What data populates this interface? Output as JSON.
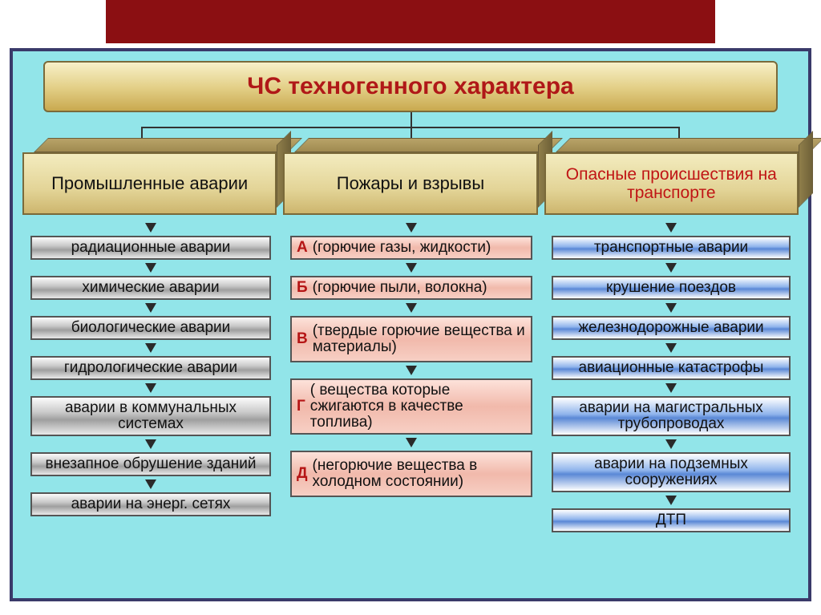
{
  "title": "ЧС техногенного характера",
  "categories": [
    {
      "label": "Промышленные аварии",
      "color": "black"
    },
    {
      "label": "Пожары и взрывы",
      "color": "black"
    },
    {
      "label": "Опасные происшествия на транспорте",
      "color": "red"
    }
  ],
  "column_left": {
    "style": "silver",
    "items": [
      "радиационные аварии",
      "химические аварии",
      "биологические аварии",
      "гидрологические аварии",
      "аварии в коммунальных системах",
      "внезапное обрушение зданий",
      "аварии на энерг. сетях"
    ]
  },
  "column_mid": {
    "style": "salmon",
    "items": [
      {
        "letter": "А",
        "text": "(горючие газы, жидкости)"
      },
      {
        "letter": "Б",
        "text": "(горючие пыли, волокна)"
      },
      {
        "letter": "В",
        "text": "(твердые горючие вещества и материалы)"
      },
      {
        "letter": "Г",
        "text": "( вещества которые сжигаются в качестве топлива)"
      },
      {
        "letter": "Д",
        "text": "(негорючие вещества в холодном состоянии)"
      }
    ]
  },
  "column_right": {
    "style": "blue",
    "items": [
      "транспортные аварии",
      "крушение поездов",
      "железнодорожные аварии",
      "авиационные катастрофы",
      "аварии на магистральных трубопроводах",
      "аварии на подземных сооружениях",
      "ДТП"
    ]
  },
  "colors": {
    "background": "#92e5e9",
    "border": "#3a3a6a",
    "title_text": "#b01818",
    "red_bar": "#8b0f12"
  }
}
